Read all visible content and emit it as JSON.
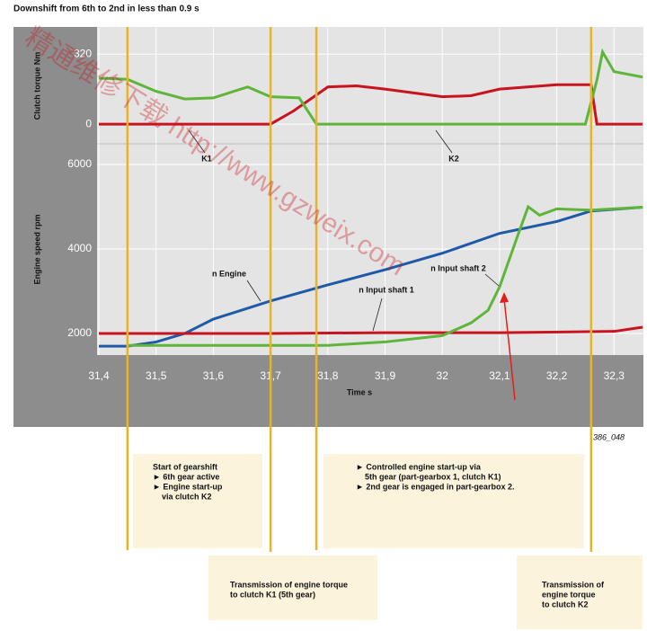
{
  "title": "Downshift from 6th to 2nd in less than 0.9 s",
  "figure_id": "386_048",
  "watermark": "精通维修下载 http://www.gzweix.com",
  "phase_lines": [
    31.45,
    31.7,
    31.78,
    32.26
  ],
  "chart_data": [
    {
      "type": "line",
      "ylabel": "Clutch torque Nm",
      "xlim": [
        31.4,
        32.35
      ],
      "ylim": [
        -90,
        440
      ],
      "yticks": [
        0,
        320
      ],
      "grid": true,
      "xticks": [
        31.4,
        31.5,
        31.6,
        31.7,
        31.8,
        31.9,
        32,
        32.1,
        32.2,
        32.3
      ],
      "annotations": [
        "K1",
        "K2"
      ],
      "series": [
        {
          "name": "K1",
          "color": "#c8141e",
          "x": [
            31.4,
            31.7,
            31.74,
            31.8,
            31.85,
            31.9,
            32.0,
            32.05,
            32.1,
            32.2,
            32.26,
            32.27,
            32.35
          ],
          "values": [
            0,
            0,
            60,
            170,
            175,
            160,
            125,
            130,
            160,
            180,
            180,
            0,
            0
          ]
        },
        {
          "name": "K2",
          "color": "#5fb53a",
          "x": [
            31.4,
            31.45,
            31.5,
            31.55,
            31.6,
            31.66,
            31.7,
            31.75,
            31.78,
            32.25,
            32.27,
            32.28,
            32.3,
            32.35
          ],
          "values": [
            210,
            205,
            150,
            115,
            120,
            170,
            125,
            120,
            0,
            0,
            200,
            330,
            240,
            215
          ]
        }
      ]
    },
    {
      "type": "line",
      "ylabel": "Engine speed rpm",
      "xlabel": "Time s",
      "xlim": [
        31.4,
        32.35
      ],
      "ylim": [
        1490,
        6490
      ],
      "yticks": [
        2000,
        4000,
        6000
      ],
      "grid": true,
      "xticks": [
        {
          "value": 31.4,
          "label": "31,4"
        },
        {
          "value": 31.5,
          "label": "31,5"
        },
        {
          "value": 31.6,
          "label": "31,6"
        },
        {
          "value": 31.7,
          "label": "31,7"
        },
        {
          "value": 31.8,
          "label": "31,8"
        },
        {
          "value": 31.9,
          "label": "31,9"
        },
        32,
        {
          "value": 32.1,
          "label": "32,1"
        },
        {
          "value": 32.2,
          "label": "32,2"
        },
        {
          "value": 32.3,
          "label": "32,3"
        }
      ],
      "annotations": [
        "n Engine",
        "n Input shaft 1",
        "n Input shaft 2"
      ],
      "series": [
        {
          "name": "n Engine",
          "color": "#1f5aa8",
          "x": [
            31.4,
            31.45,
            31.5,
            31.55,
            31.6,
            31.7,
            31.8,
            31.9,
            32.0,
            32.1,
            32.2,
            32.26,
            32.35
          ],
          "values": [
            1700,
            1700,
            1800,
            2000,
            2340,
            2770,
            3150,
            3510,
            3900,
            4370,
            4650,
            4900,
            4990
          ]
        },
        {
          "name": "n Input shaft 1",
          "color": "#c8141e",
          "x": [
            31.4,
            31.7,
            31.9,
            32.1,
            32.3,
            32.35
          ],
          "values": [
            2000,
            2000,
            2020,
            2020,
            2050,
            2150
          ]
        },
        {
          "name": "n Input shaft 2",
          "color": "#5fb53a",
          "x": [
            31.45,
            31.8,
            31.9,
            32.0,
            32.05,
            32.08,
            32.1,
            32.13,
            32.15,
            32.17,
            32.2,
            32.26,
            32.35
          ],
          "values": [
            1720,
            1720,
            1800,
            1950,
            2250,
            2550,
            3100,
            4250,
            5000,
            4800,
            4950,
            4920,
            4990
          ]
        }
      ]
    }
  ],
  "boxes": [
    {
      "lines": [
        "Start of gearshift",
        "► 6th gear active",
        "► Engine start-up",
        "via clutch K2"
      ]
    },
    {
      "lines": [
        "Transmission of engine torque",
        "to clutch K1 (5th gear)"
      ]
    },
    {
      "lines": [
        "► Controlled engine start-up via",
        "5th gear (part-gearbox 1, clutch K1)",
        "► 2nd gear is engaged in part-gearbox 2."
      ]
    },
    {
      "lines": [
        "Transmission of",
        "engine torque",
        "to clutch K2"
      ]
    }
  ]
}
